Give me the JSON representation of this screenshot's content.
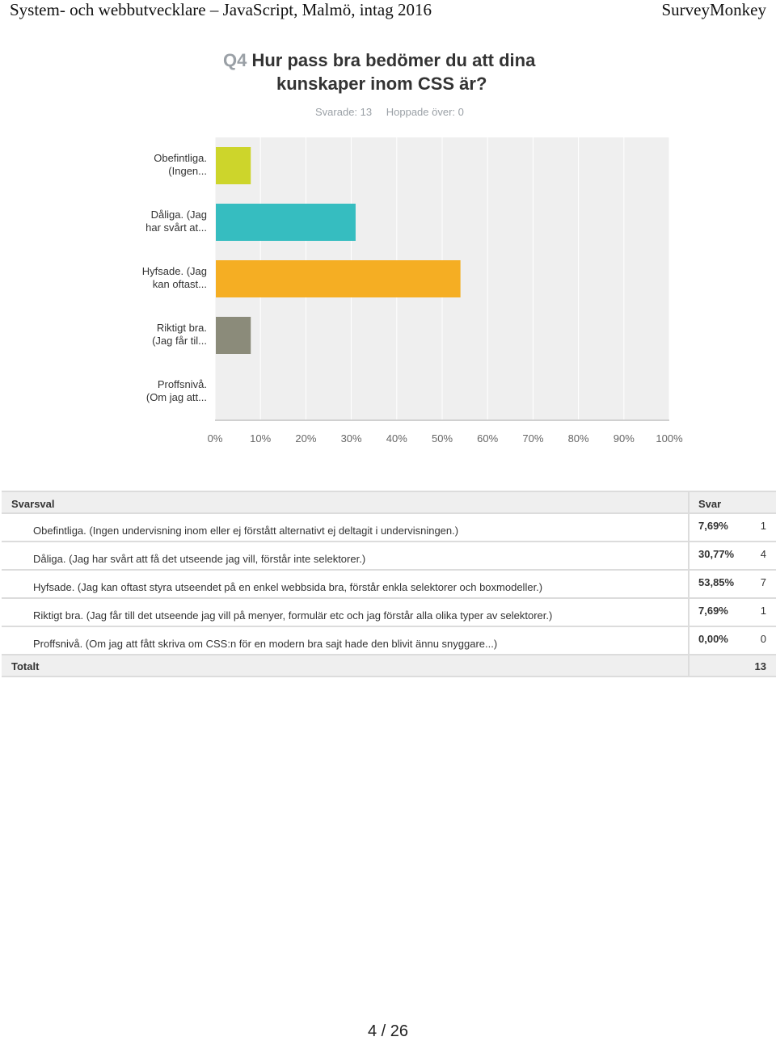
{
  "header": {
    "left_title": "System- och webbutvecklare – JavaScript, Malmö, intag 2016",
    "right_title": "SurveyMonkey"
  },
  "question": {
    "number": "Q4",
    "title_line1": "Hur pass bra bedömer du att dina",
    "title_line2": "kunskaper inom CSS är?",
    "answered": "Svarade: 13",
    "skipped": "Hoppade över: 0"
  },
  "chart_data": {
    "type": "bar",
    "orientation": "horizontal",
    "categories": [
      [
        "Obefintliga.",
        "(Ingen..."
      ],
      [
        "Dåliga. (Jag",
        "har svårt at..."
      ],
      [
        "Hyfsade. (Jag",
        "kan oftast..."
      ],
      [
        "Riktigt bra.",
        "(Jag får til..."
      ],
      [
        "Proffsnivå.",
        "(Om jag att..."
      ]
    ],
    "values": [
      7.69,
      30.77,
      53.85,
      7.69,
      0.0
    ],
    "colors": [
      "#cdd52b",
      "#36bdc0",
      "#f5ae23",
      "#8b8b7a",
      "#999999"
    ],
    "x_ticks": [
      "0%",
      "10%",
      "20%",
      "30%",
      "40%",
      "50%",
      "60%",
      "70%",
      "80%",
      "90%",
      "100%"
    ],
    "xlim": [
      0,
      100
    ],
    "grid": true
  },
  "table": {
    "col_choice": "Svarsval",
    "col_answers": "Svar",
    "rows": [
      {
        "label": "Obefintliga. (Ingen undervisning inom eller ej förstått alternativt ej deltagit i undervisningen.)",
        "percent": "7,69%",
        "count": "1"
      },
      {
        "label": "Dåliga. (Jag har svårt att få det utseende jag vill, förstår inte selektorer.)",
        "percent": "30,77%",
        "count": "4"
      },
      {
        "label": "Hyfsade. (Jag kan oftast styra utseendet på en enkel webbsida bra, förstår enkla selektorer och boxmodeller.)",
        "percent": "53,85%",
        "count": "7"
      },
      {
        "label": "Riktigt bra. (Jag får till det utseende jag vill på menyer, formulär etc och jag förstår alla olika typer av selektorer.)",
        "percent": "7,69%",
        "count": "1"
      },
      {
        "label": "Proffsnivå. (Om jag att fått skriva om CSS:n för en modern bra sajt hade den blivit ännu snyggare...)",
        "percent": "0,00%",
        "count": "0"
      }
    ],
    "total_label": "Totalt",
    "total_value": "13"
  },
  "footer": {
    "page": "4 / 26"
  }
}
